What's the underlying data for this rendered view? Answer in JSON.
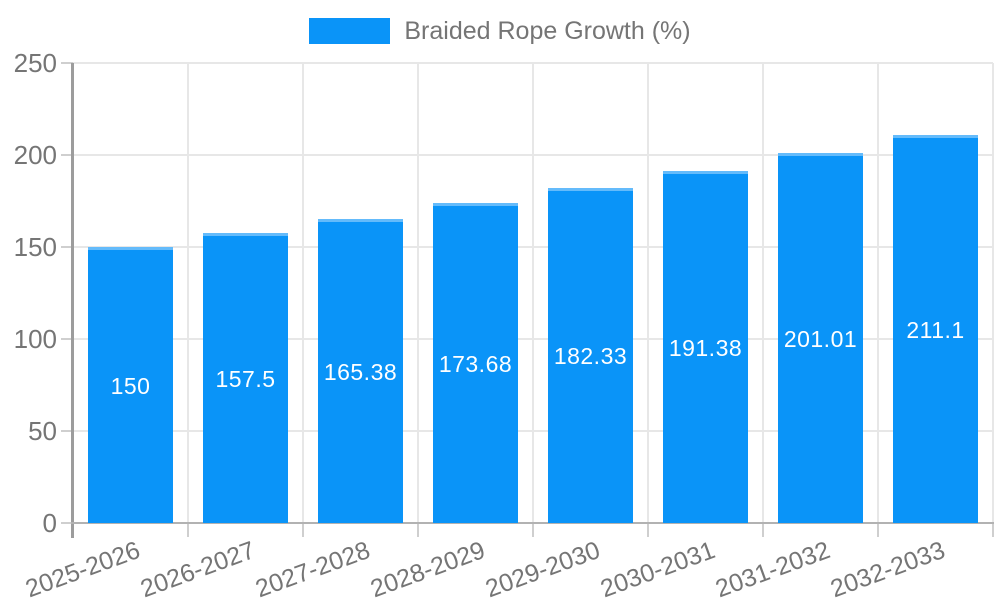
{
  "chart_data": {
    "type": "bar",
    "title": "Braided Rope Growth (%)",
    "categories": [
      "2025-2026",
      "2026-2027",
      "2027-2028",
      "2028-2029",
      "2029-2030",
      "2030-2031",
      "2031-2032",
      "2032-2033"
    ],
    "values": [
      150,
      157.5,
      165.38,
      173.68,
      182.33,
      191.38,
      201.01,
      211.1
    ],
    "bar_labels": [
      "150",
      "157.5",
      "165.38",
      "173.68",
      "182.33",
      "191.38",
      "201.01",
      "211.1"
    ],
    "xlabel": "",
    "ylabel": "",
    "ylim": [
      0,
      250
    ],
    "yticks": [
      0,
      50,
      100,
      150,
      200,
      250
    ],
    "grid": true,
    "legend": {
      "position": "top-center",
      "entries": [
        "Braided Rope Growth (%)"
      ]
    },
    "colors": {
      "bar_fill": "#0a94f8",
      "bar_top_edge": "#64bbfb",
      "bar_label_text": "#ffffff",
      "axis_text": "#757575",
      "gridline": "#e7e7e7",
      "y_axis_line": "#9c9c9c",
      "x_axis_line": "#b2b2b2",
      "tick": "#cfcfcf",
      "background": "#ffffff"
    }
  }
}
